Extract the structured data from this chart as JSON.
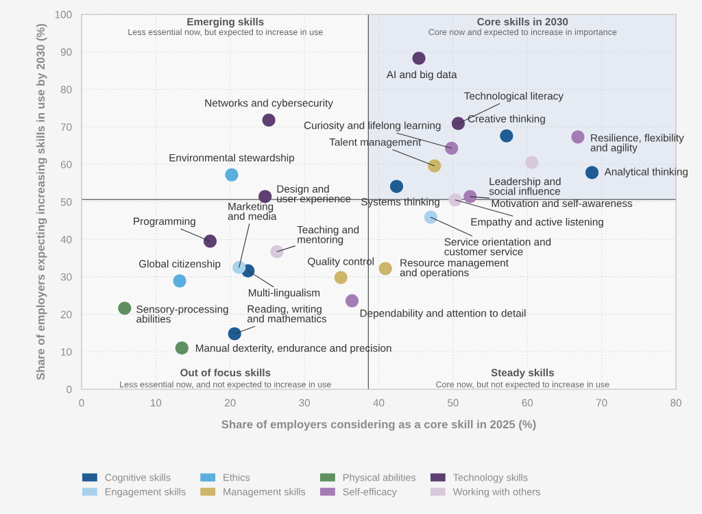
{
  "chart_data": {
    "type": "scatter",
    "xlabel": "Share of employers considering as a core skill in 2025 (%)",
    "ylabel": "Share of employers expecting increasing skills in use by 2030 (%)",
    "xlim": [
      0,
      80
    ],
    "xticks": [
      0,
      10,
      20,
      30,
      40,
      50,
      60,
      70,
      80
    ],
    "ylim": [
      0,
      100
    ],
    "yticks": [
      0,
      10,
      20,
      30,
      40,
      50,
      60,
      70,
      80,
      90,
      100
    ],
    "grid": true,
    "legend": "bottom",
    "marker": "circle",
    "ref_lines": [
      {
        "axis": "x",
        "value": 38.6,
        "color": "#555555"
      },
      {
        "axis": "y",
        "value": 50.6,
        "color": "#555555"
      }
    ],
    "bands": [
      {
        "axis": "x",
        "from": 38.6,
        "to": 80,
        "color": "#e6ebf3"
      }
    ],
    "series": [
      {
        "name": "Cognitive skills",
        "color": "#1f5c93",
        "x": [
          57.2,
          68.7,
          42.4,
          22.4,
          20.6
        ],
        "values": [
          67.6,
          57.8,
          54.1,
          31.6,
          14.8
        ]
      },
      {
        "name": "Engagement skills",
        "color": "#a8d1ec",
        "x": [
          21.2,
          47.0
        ],
        "values": [
          32.5,
          45.9
        ]
      },
      {
        "name": "Ethics",
        "color": "#5aaede",
        "x": [
          20.2,
          13.2
        ],
        "values": [
          57.2,
          28.9
        ]
      },
      {
        "name": "Management skills",
        "color": "#cdb56a",
        "x": [
          47.5,
          34.9,
          40.9
        ],
        "values": [
          59.6,
          29.8,
          32.2
        ]
      },
      {
        "name": "Physical abilities",
        "color": "#5f8f60",
        "x": [
          5.8,
          13.5
        ],
        "values": [
          21.6,
          11.0
        ]
      },
      {
        "name": "Self-efficacy",
        "color": "#a47cb5",
        "x": [
          66.8,
          49.8,
          52.3,
          36.4
        ],
        "values": [
          67.3,
          64.3,
          51.4,
          23.6
        ]
      },
      {
        "name": "Technology skills",
        "color": "#5e3f72",
        "x": [
          45.4,
          25.2,
          50.7,
          24.7,
          17.3
        ],
        "values": [
          88.3,
          71.8,
          70.9,
          51.4,
          39.5
        ]
      },
      {
        "name": "Working with others",
        "color": "#d7c8dc",
        "x": [
          60.6,
          50.3,
          26.3
        ],
        "values": [
          60.5,
          50.5,
          36.7
        ]
      }
    ],
    "annotations": [
      "Emerging skills",
      "Less essential now, but expected to increase in use",
      "Core skills in 2030",
      "Core now and expected to increase in importance",
      "Out of focus skills",
      "Less essential now, and not expected to increase in use",
      "Steady skills",
      "Core now, but not expected to increase in use",
      {
        "text": "Creative thinking",
        "x": 57.2,
        "y": 67.6
      },
      {
        "text": "Analytical thinking",
        "x": 68.7,
        "y": 57.8
      },
      {
        "text": "Systems thinking",
        "x": 42.4,
        "y": 54.1
      },
      {
        "text": "Multi-lingualism",
        "x": 22.4,
        "y": 31.6
      },
      {
        "text": "Reading, writing\nand mathematics",
        "x": 20.6,
        "y": 14.8
      },
      {
        "text": "Marketing\nand media",
        "x": 21.2,
        "y": 32.5
      },
      {
        "text": "Service orientation and\ncustomer service",
        "x": 47.0,
        "y": 45.9
      },
      {
        "text": "Environmental stewardship",
        "x": 20.2,
        "y": 57.2
      },
      {
        "text": "Global citizenship",
        "x": 13.2,
        "y": 28.9
      },
      {
        "text": "Talent management",
        "x": 47.5,
        "y": 59.6
      },
      {
        "text": "Quality control",
        "x": 34.9,
        "y": 29.8
      },
      {
        "text": "Resource management\nand operations",
        "x": 40.9,
        "y": 32.2
      },
      {
        "text": "Sensory-processing\nabilities",
        "x": 5.8,
        "y": 21.6
      },
      {
        "text": "Manual dexterity, endurance and precision",
        "x": 13.5,
        "y": 11.0
      },
      {
        "text": "Resilience, flexibility\nand agility",
        "x": 66.8,
        "y": 67.3
      },
      {
        "text": "Curiosity and lifelong learning",
        "x": 49.8,
        "y": 64.3
      },
      {
        "text": "Motivation and self-awareness",
        "x": 52.3,
        "y": 51.4
      },
      {
        "text": "Dependability and attention to detail",
        "x": 36.4,
        "y": 23.6
      },
      {
        "text": "AI and big data",
        "x": 45.4,
        "y": 88.3
      },
      {
        "text": "Networks and cybersecurity",
        "x": 25.2,
        "y": 71.8
      },
      {
        "text": "Technological literacy",
        "x": 50.7,
        "y": 70.9
      },
      {
        "text": "Design and\nuser experience",
        "x": 24.7,
        "y": 51.4
      },
      {
        "text": "Programming",
        "x": 17.3,
        "y": 39.5
      },
      {
        "text": "Leadership and\nsocial influence",
        "x": 60.6,
        "y": 60.5
      },
      {
        "text": "Empathy and active listening",
        "x": 50.3,
        "y": 50.5
      },
      {
        "text": "Teaching and\nmentoring",
        "x": 26.3,
        "y": 36.7
      }
    ]
  }
}
